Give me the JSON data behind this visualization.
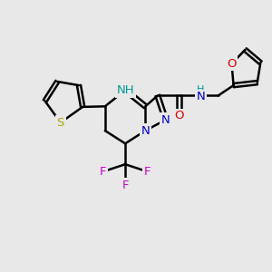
{
  "bg_color": "#e8e8e8",
  "bond_color": "#000000",
  "bond_width": 1.8,
  "atom_colors": {
    "N": "#0000cc",
    "NH": "#009999",
    "S": "#aaaa00",
    "O": "#dd0000",
    "F": "#cc00cc",
    "C": "#000000"
  },
  "font_size": 9.5,
  "figsize": [
    3.0,
    3.0
  ],
  "dpi": 100
}
